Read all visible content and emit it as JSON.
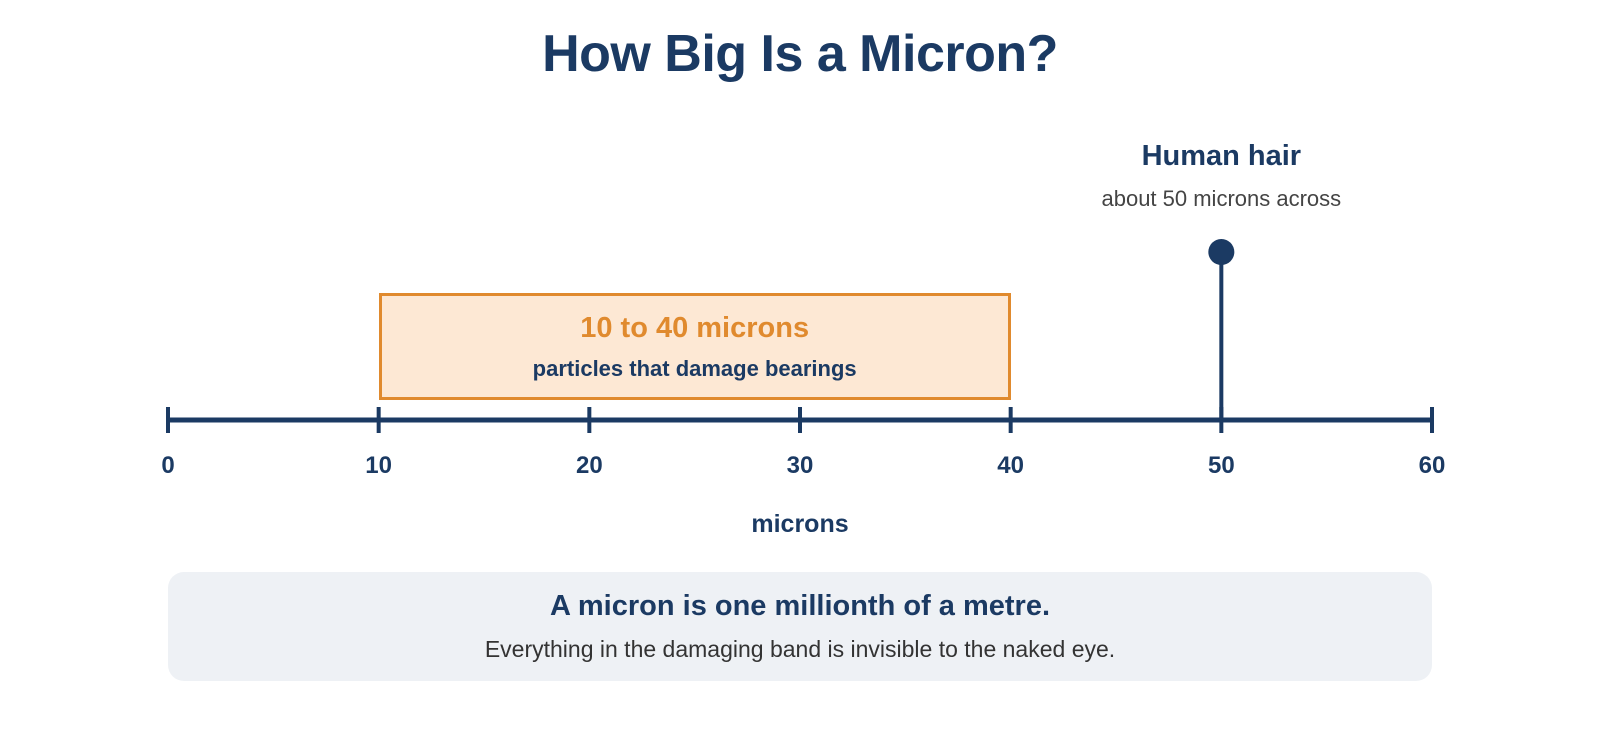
{
  "title": "How Big Is a Micron?",
  "chart_data": {
    "type": "number-line",
    "xlabel": "microns",
    "xlim": [
      0,
      60
    ],
    "ticks": [
      0,
      10,
      20,
      30,
      40,
      50,
      60
    ],
    "range_band": {
      "start": 10,
      "end": 40,
      "label": "10 to 40 microns",
      "sublabel": "particles that damage bearings",
      "color": "#e08a2e",
      "fill": "#fde8d4"
    },
    "marker": {
      "value": 50,
      "label": "Human hair",
      "sublabel": "about 50 microns across",
      "color": "#1b3a63"
    },
    "axis_color": "#1b3a63"
  },
  "note": {
    "title": "A micron is one millionth of a metre.",
    "subtitle": "Everything in the damaging band is invisible to the naked eye."
  }
}
